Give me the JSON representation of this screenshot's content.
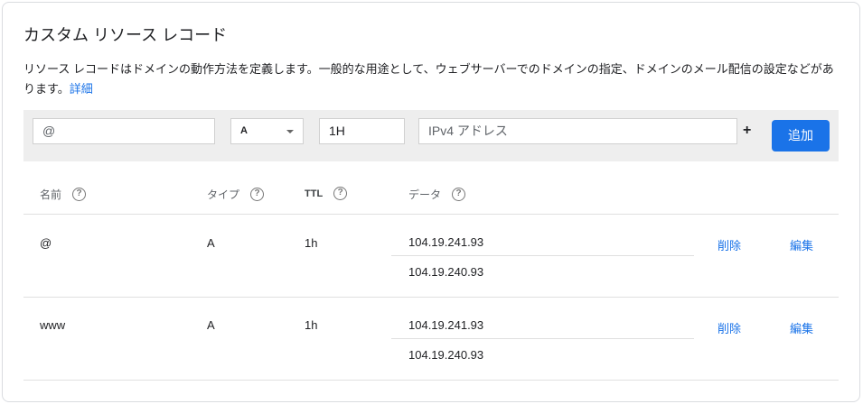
{
  "title": "カスタム リソース レコード",
  "description": "リソース レコードはドメインの動作方法を定義します。一般的な用途として、ウェブサーバーでのドメインの指定、ドメインのメール配信の設定などがあります。",
  "details_link": "詳細",
  "form": {
    "name_value": "@",
    "type_value": "A",
    "ttl_value": "1H",
    "data_placeholder": "IPv4 アドレス",
    "plus": "+",
    "add_label": "追加"
  },
  "headers": {
    "name": "名前",
    "type": "タイプ",
    "ttl": "TTL",
    "data": "データ",
    "help": "?"
  },
  "rows": [
    {
      "name": "@",
      "type": "A",
      "ttl": "1h",
      "data": [
        "104.19.241.93",
        "104.19.240.93"
      ],
      "delete": "削除",
      "edit": "編集"
    },
    {
      "name": "www",
      "type": "A",
      "ttl": "1h",
      "data": [
        "104.19.241.93",
        "104.19.240.93"
      ],
      "delete": "削除",
      "edit": "編集"
    }
  ],
  "colors": {
    "accent": "#1a73e8",
    "band": "#eeeeee"
  }
}
